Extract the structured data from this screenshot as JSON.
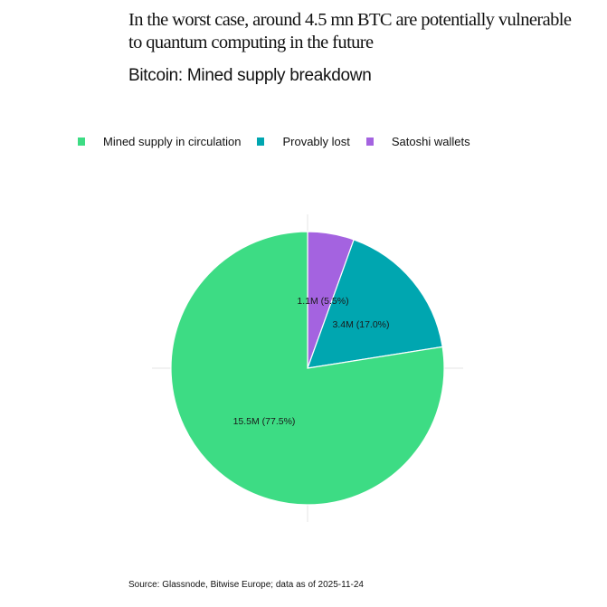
{
  "header": {
    "headline": "In the worst case, around 4.5 mn BTC are potentially vulnerable to quantum computing in the future",
    "subtitle": "Bitcoin: Mined supply breakdown"
  },
  "legend": {
    "items": [
      {
        "label": "Mined supply in circulation",
        "color": "#3ddc84"
      },
      {
        "label": "Provably lost",
        "color": "#00a6b0"
      },
      {
        "label": "Satoshi wallets",
        "color": "#a463e0"
      }
    ]
  },
  "labels": {
    "satoshi": "1.1M (5.5%)",
    "lost": "3.4M (17.0%)",
    "circulation": "15.5M (77.5%)"
  },
  "footer": {
    "source": "Source: Glassnode, Bitwise Europe; data as of 2025-11-24"
  },
  "chart_data": {
    "type": "pie",
    "title": "Bitcoin: Mined supply breakdown",
    "subtitle": "In the worst case, around 4.5 mn BTC are potentially vulnerable to quantum computing in the future",
    "categories": [
      "Satoshi wallets",
      "Provably lost",
      "Mined supply in circulation"
    ],
    "values": [
      1.1,
      3.4,
      15.5
    ],
    "units": "million BTC",
    "percentages": [
      5.5,
      17.0,
      77.5
    ],
    "data_labels": [
      "1.1M (5.5%)",
      "3.4M (17.0%)",
      "15.5M (77.5%)"
    ],
    "colors": [
      "#a463e0",
      "#00a6b0",
      "#3ddc84"
    ],
    "start_angle": "12 o'clock, clockwise",
    "legend_position": "top",
    "source": "Source: Glassnode, Bitwise Europe; data as of 2025-11-24"
  }
}
